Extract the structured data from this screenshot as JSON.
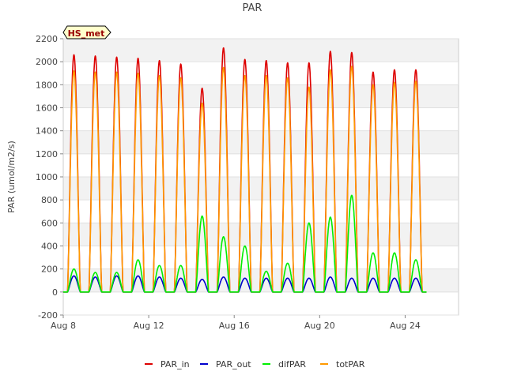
{
  "chart_data": {
    "type": "line",
    "title": "PAR",
    "xlabel": "",
    "ylabel": "PAR (umol/m2/s)",
    "ylim": [
      -200,
      2200
    ],
    "yticks": [
      -200,
      0,
      200,
      400,
      600,
      800,
      1000,
      1200,
      1400,
      1600,
      1800,
      2000,
      2200
    ],
    "xlim_days": [
      8,
      26.5
    ],
    "xticks": [
      {
        "day": 8,
        "label": "Aug 8"
      },
      {
        "day": 12,
        "label": "Aug 12"
      },
      {
        "day": 16,
        "label": "Aug 16"
      },
      {
        "day": 20,
        "label": "Aug 20"
      },
      {
        "day": 24,
        "label": "Aug 24"
      }
    ],
    "site_label": "HS_met",
    "days": [
      8.5,
      9.5,
      10.5,
      11.5,
      12.5,
      13.5,
      14.5,
      15.5,
      16.5,
      17.5,
      18.5,
      19.5,
      20.5,
      21.5,
      22.5,
      23.5,
      24.5
    ],
    "series": [
      {
        "name": "PAR_in",
        "color": "#dd0000",
        "daily_peak": [
          2060,
          2050,
          2040,
          2030,
          2010,
          1980,
          1770,
          2120,
          2020,
          2010,
          1990,
          1990,
          2090,
          2080,
          1910,
          1930,
          1930
        ]
      },
      {
        "name": "PAR_out",
        "color": "#0000cc",
        "daily_peak": [
          140,
          130,
          140,
          140,
          130,
          120,
          110,
          130,
          120,
          120,
          120,
          120,
          130,
          120,
          120,
          120,
          120
        ]
      },
      {
        "name": "difPAR",
        "color": "#00ee00",
        "daily_peak": [
          200,
          170,
          170,
          280,
          230,
          230,
          660,
          480,
          400,
          180,
          250,
          600,
          650,
          840,
          340,
          340,
          280
        ]
      },
      {
        "name": "totPAR",
        "color": "#ff9900",
        "daily_peak": [
          1920,
          1910,
          1910,
          1900,
          1880,
          1860,
          1640,
          1950,
          1880,
          1880,
          1860,
          1780,
          1930,
          1960,
          1800,
          1820,
          1830
        ]
      }
    ],
    "legend_position": "bottom"
  }
}
